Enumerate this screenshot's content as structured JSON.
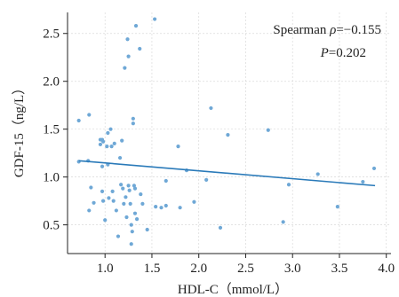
{
  "chart_data": {
    "type": "scatter",
    "xlabel": "HDL-C（mmol/L）",
    "ylabel": "GDF-15（ng/L）",
    "xlim": [
      0.6,
      4.05
    ],
    "ylim": [
      0.2,
      2.72
    ],
    "xticks": [
      1.0,
      1.5,
      2.0,
      2.5,
      3.0,
      3.5,
      4.0
    ],
    "xtick_labels": [
      "1.0",
      "1.5",
      "2.0",
      "2.5",
      "3.0",
      "3.5",
      "4.0"
    ],
    "yticks": [
      0.5,
      1.0,
      1.5,
      2.0,
      2.5
    ],
    "ytick_labels": [
      "0.5",
      "1.0",
      "1.5",
      "2.0",
      "2.5"
    ],
    "grid": true,
    "annotation": {
      "line1_prefix": "Spearman ",
      "rho_symbol": "ρ",
      "rho_value": "=−0.155",
      "p_symbol": "P",
      "p_value": "=0.202"
    },
    "point_color": "#6fa8d6",
    "line_color": "#2a7ab9",
    "trend_line": {
      "x": [
        0.72,
        3.88
      ],
      "y": [
        1.17,
        0.91
      ]
    },
    "points": [
      {
        "x": 0.72,
        "y": 1.59
      },
      {
        "x": 0.72,
        "y": 1.16
      },
      {
        "x": 0.82,
        "y": 1.17
      },
      {
        "x": 0.83,
        "y": 1.65
      },
      {
        "x": 0.83,
        "y": 0.65
      },
      {
        "x": 0.85,
        "y": 0.89
      },
      {
        "x": 0.88,
        "y": 0.73
      },
      {
        "x": 0.95,
        "y": 1.34
      },
      {
        "x": 0.95,
        "y": 1.39
      },
      {
        "x": 0.97,
        "y": 1.39
      },
      {
        "x": 0.98,
        "y": 1.37
      },
      {
        "x": 0.97,
        "y": 1.11
      },
      {
        "x": 0.97,
        "y": 0.85
      },
      {
        "x": 0.98,
        "y": 0.75
      },
      {
        "x": 1.0,
        "y": 0.55
      },
      {
        "x": 1.02,
        "y": 1.32
      },
      {
        "x": 1.03,
        "y": 1.46
      },
      {
        "x": 1.03,
        "y": 1.13
      },
      {
        "x": 1.04,
        "y": 0.78
      },
      {
        "x": 1.06,
        "y": 1.5
      },
      {
        "x": 1.07,
        "y": 1.32
      },
      {
        "x": 1.09,
        "y": 0.75
      },
      {
        "x": 1.08,
        "y": 0.85
      },
      {
        "x": 1.1,
        "y": 1.35
      },
      {
        "x": 1.12,
        "y": 0.65
      },
      {
        "x": 1.14,
        "y": 0.38
      },
      {
        "x": 1.16,
        "y": 1.2
      },
      {
        "x": 1.17,
        "y": 0.92
      },
      {
        "x": 1.18,
        "y": 1.38
      },
      {
        "x": 1.19,
        "y": 0.88
      },
      {
        "x": 1.2,
        "y": 0.72
      },
      {
        "x": 1.21,
        "y": 2.14
      },
      {
        "x": 1.22,
        "y": 0.79
      },
      {
        "x": 1.23,
        "y": 0.58
      },
      {
        "x": 1.24,
        "y": 2.44
      },
      {
        "x": 1.25,
        "y": 2.26
      },
      {
        "x": 1.25,
        "y": 0.91
      },
      {
        "x": 1.26,
        "y": 0.86
      },
      {
        "x": 1.27,
        "y": 0.72
      },
      {
        "x": 1.28,
        "y": 0.5
      },
      {
        "x": 1.28,
        "y": 0.3
      },
      {
        "x": 1.29,
        "y": 0.43
      },
      {
        "x": 1.3,
        "y": 1.56
      },
      {
        "x": 1.3,
        "y": 1.61
      },
      {
        "x": 1.31,
        "y": 0.91
      },
      {
        "x": 1.32,
        "y": 0.88
      },
      {
        "x": 1.32,
        "y": 0.62
      },
      {
        "x": 1.33,
        "y": 2.58
      },
      {
        "x": 1.34,
        "y": 0.56
      },
      {
        "x": 1.37,
        "y": 2.34
      },
      {
        "x": 1.38,
        "y": 0.82
      },
      {
        "x": 1.4,
        "y": 0.72
      },
      {
        "x": 1.45,
        "y": 0.45
      },
      {
        "x": 1.53,
        "y": 2.65
      },
      {
        "x": 1.54,
        "y": 0.69
      },
      {
        "x": 1.6,
        "y": 0.68
      },
      {
        "x": 1.65,
        "y": 0.96
      },
      {
        "x": 1.65,
        "y": 0.7
      },
      {
        "x": 1.78,
        "y": 1.32
      },
      {
        "x": 1.8,
        "y": 0.68
      },
      {
        "x": 1.87,
        "y": 1.07
      },
      {
        "x": 1.95,
        "y": 0.74
      },
      {
        "x": 2.08,
        "y": 0.97
      },
      {
        "x": 2.13,
        "y": 1.72
      },
      {
        "x": 2.23,
        "y": 0.47
      },
      {
        "x": 2.31,
        "y": 1.44
      },
      {
        "x": 2.74,
        "y": 1.49
      },
      {
        "x": 2.9,
        "y": 0.53
      },
      {
        "x": 2.96,
        "y": 0.92
      },
      {
        "x": 3.27,
        "y": 1.03
      },
      {
        "x": 3.48,
        "y": 0.69
      },
      {
        "x": 3.75,
        "y": 0.95
      },
      {
        "x": 3.87,
        "y": 1.09
      }
    ]
  }
}
